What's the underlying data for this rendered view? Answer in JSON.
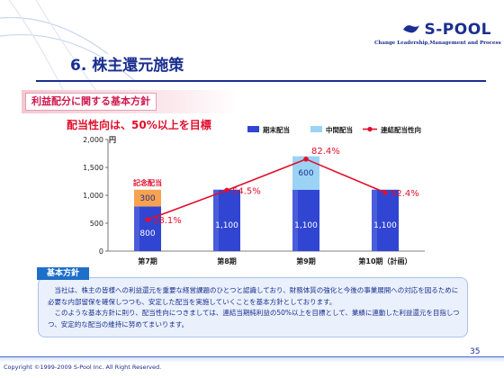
{
  "logo": {
    "text": "S-POOL",
    "tagline": "Change Leadership,Management and Process"
  },
  "title": "6. 株主還元施策",
  "section_label": "利益配分に関する基本方針",
  "subtitle": "配当性向は、50%以上を目標",
  "colors": {
    "navy": "#1a2f8f",
    "bar_dark": "#3045d2",
    "bar_light": "#9bd3f5",
    "bar_orange": "#f7a250",
    "line_red": "#e0102c",
    "accent_pink": "#d01a4e"
  },
  "chart_data": {
    "type": "bar+line",
    "y_unit": "円",
    "ylim": [
      0,
      2000
    ],
    "yticks": [
      "0",
      "500",
      "1,000",
      "1,500",
      "2,000"
    ],
    "categories": [
      "第7期",
      "第8期",
      "第9期",
      "第10期（計画）"
    ],
    "legend": [
      "期末配当",
      "中間配当",
      "連結配当性向"
    ],
    "legend_position": "top-right",
    "series": [
      {
        "name": "期末配当",
        "values": [
          800,
          1100,
          1100,
          1100
        ],
        "labels": [
          "800",
          "1,100",
          "1,100",
          "1,100"
        ]
      },
      {
        "name": "中間配当",
        "values": [
          0,
          0,
          600,
          0
        ],
        "labels": [
          "",
          "",
          "600",
          ""
        ]
      },
      {
        "name": "記念配当",
        "values": [
          300,
          0,
          0,
          0
        ],
        "labels": [
          "300",
          "",
          "",
          ""
        ]
      },
      {
        "name": "連結配当性向",
        "values": [
          28.1,
          54.5,
          82.4,
          52.4
        ],
        "labels": [
          "28.1%",
          "54.5%",
          "82.4%",
          "52.4%"
        ],
        "y2_lim": [
          0,
          100
        ]
      }
    ],
    "annotation": "記念配当",
    "grid": false
  },
  "policy": {
    "label": "基本方針",
    "paragraphs": [
      "当社は、株主の皆様への利益還元を重要な経営課題のひとつと認識しており、財務体質の強化と今後の事業展開への対応を図るために必要な内部留保を確保しつつも、安定した配当を実施していくことを基本方針としております。",
      "このような基本方針に則り、配当性向につきましては、連結当期純利益の50%以上を目標として、業績に連動した利益還元を目指しつつ、安定的な配当の維持に努めてまいります。"
    ]
  },
  "footer": {
    "copyright": "Copyright ©1999-2009 S-Pool Inc. All Right Reserved.",
    "page": "35"
  }
}
